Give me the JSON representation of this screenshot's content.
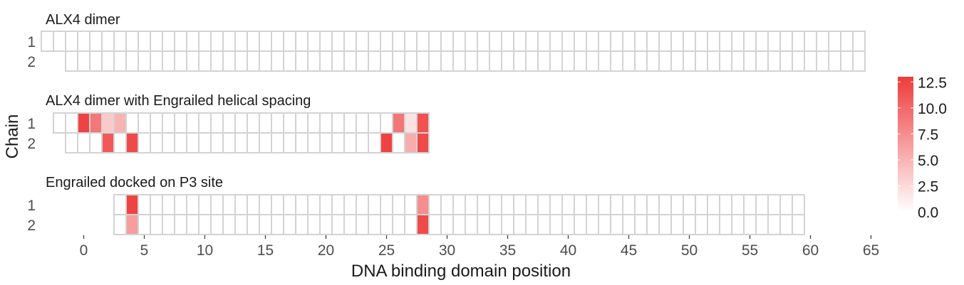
{
  "chart_data": {
    "type": "heatmap",
    "xlabel": "DNA binding domain position",
    "ylabel": "Chain",
    "xlim": [
      -2.7,
      65.3
    ],
    "x_ticks": [
      0,
      5,
      10,
      15,
      20,
      25,
      30,
      35,
      40,
      45,
      50,
      55,
      60,
      65
    ],
    "color_scale": {
      "low": "#ffffff",
      "high": "#ee3b3b",
      "min": 0,
      "max": 13,
      "ticks": [
        "0.0",
        "2.5",
        "5.0",
        "7.5",
        "10.0",
        "12.5"
      ]
    },
    "grid_stroke": "#d3d3d3",
    "panels": [
      {
        "title": "ALX4 dimer",
        "chains": [
          {
            "label": "1",
            "range": [
              -3,
              64
            ],
            "values": {}
          },
          {
            "label": "2",
            "range": [
              -1,
              64
            ],
            "values": {}
          }
        ]
      },
      {
        "title": "ALX4 dimer with Engrailed helical spacing",
        "chains": [
          {
            "label": "1",
            "range": [
              -2,
              28
            ],
            "values": {
              "-1": 0.0,
              "0": 12.5,
              "1": 9.0,
              "2": 3.5,
              "3": 5.0,
              "26": 9.0,
              "27": 2.0,
              "28": 11.5
            }
          },
          {
            "label": "2",
            "range": [
              -1,
              28
            ],
            "values": {
              "2": 11.0,
              "4": 12.0,
              "25": 12.5,
              "27": 5.5,
              "28": 12.0
            }
          }
        ]
      },
      {
        "title": "Engrailed docked on P3 site",
        "chains": [
          {
            "label": "1",
            "range": [
              3,
              59
            ],
            "values": {
              "4": 12.5,
              "28": 7.5
            }
          },
          {
            "label": "2",
            "range": [
              3,
              59
            ],
            "values": {
              "4": 6.5,
              "28": 12.0
            }
          }
        ]
      }
    ]
  }
}
